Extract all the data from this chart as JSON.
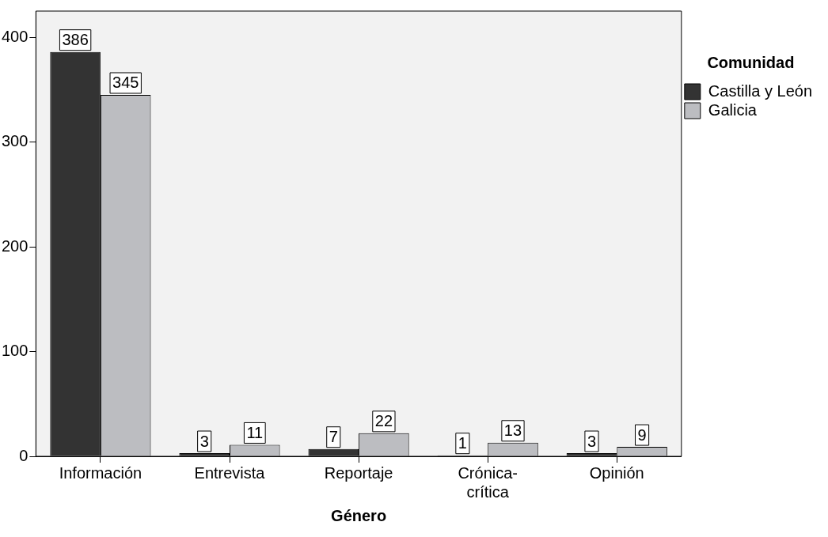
{
  "chart_data": {
    "type": "bar",
    "xlabel": "Género",
    "legend_title": "Comunidad",
    "legend": "right",
    "categories": [
      "Información",
      "Entrevista",
      "Reportaje",
      "Crónica-crítica",
      "Opinión"
    ],
    "series": [
      {
        "name": "Castilla y León",
        "color": "#333333",
        "values": [
          386,
          3,
          7,
          1,
          3
        ]
      },
      {
        "name": "Galicia",
        "color": "#bcbdc1",
        "values": [
          345,
          11,
          22,
          13,
          9
        ]
      }
    ],
    "ylim": [
      0,
      425
    ],
    "yticks": [
      0,
      100,
      200,
      300,
      400
    ],
    "grid": false,
    "data_labels": true
  }
}
